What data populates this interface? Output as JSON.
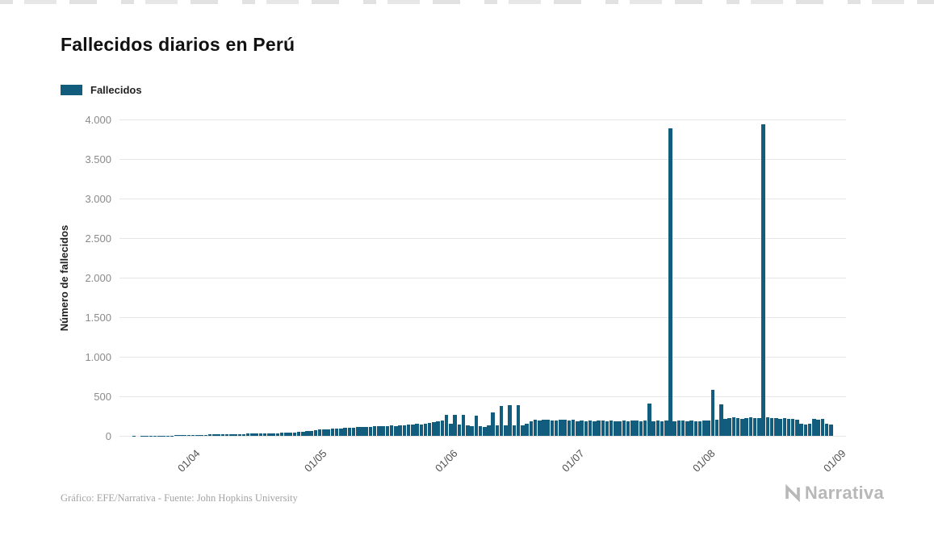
{
  "page": {
    "title": "Fallecidos diarios en Perú",
    "footer_credit": "Gráfico: EFE/Narrativa - Fuente: John Hopkins University",
    "brand": "Narrativa"
  },
  "legend": {
    "label": "Fallecidos",
    "swatch_color": "#125d7e"
  },
  "colors": {
    "bar": "#125d7e",
    "grid": "#e6e6e6",
    "y_tick_text": "#8a8a8a",
    "x_tick_text": "#4f4f4f",
    "title_text": "#111111",
    "credit_text": "#a3a3a3",
    "brand_text": "#b8b8b8"
  },
  "chart_data": {
    "type": "bar",
    "title": "Fallecidos diarios en Perú",
    "series_name": "Fallecidos",
    "xlabel": "",
    "ylabel": "Número de fallecidos",
    "ylim": [
      0,
      4000
    ],
    "grid": "horizontal",
    "legend_position": "top-left",
    "bar_color": "#125d7e",
    "start_date": "2020-03-15",
    "axis_domain_days": 172,
    "y_ticks": [
      {
        "value": 0,
        "label": "0"
      },
      {
        "value": 500,
        "label": "500"
      },
      {
        "value": 1000,
        "label": "1.000"
      },
      {
        "value": 1500,
        "label": "1.500"
      },
      {
        "value": 2000,
        "label": "2.000"
      },
      {
        "value": 2500,
        "label": "2.500"
      },
      {
        "value": 3000,
        "label": "3.000"
      },
      {
        "value": 3500,
        "label": "3.500"
      },
      {
        "value": 4000,
        "label": "4.000"
      }
    ],
    "x_ticks": [
      {
        "label": "01/04",
        "day_index": 17
      },
      {
        "label": "01/05",
        "day_index": 47
      },
      {
        "label": "01/06",
        "day_index": 78
      },
      {
        "label": "01/07",
        "day_index": 108
      },
      {
        "label": "01/08",
        "day_index": 139
      },
      {
        "label": "01/09",
        "day_index": 170
      }
    ],
    "values": [
      0,
      0,
      0,
      1,
      0,
      2,
      1,
      2,
      3,
      2,
      4,
      5,
      4,
      6,
      8,
      9,
      11,
      13,
      12,
      15,
      14,
      17,
      16,
      19,
      18,
      21,
      20,
      23,
      22,
      25,
      27,
      26,
      29,
      31,
      30,
      33,
      35,
      34,
      37,
      40,
      43,
      46,
      50,
      55,
      60,
      66,
      72,
      78,
      84,
      80,
      90,
      95,
      88,
      100,
      105,
      98,
      110,
      108,
      115,
      112,
      120,
      118,
      125,
      122,
      130,
      127,
      135,
      132,
      140,
      145,
      150,
      148,
      158,
      165,
      175,
      185,
      195,
      270,
      150,
      270,
      140,
      265,
      135,
      125,
      260,
      120,
      115,
      130,
      300,
      135,
      380,
      130,
      390,
      128,
      385,
      135,
      150,
      185,
      200,
      195,
      205,
      200,
      198,
      193,
      200,
      204,
      197,
      201,
      188,
      192,
      185,
      190,
      187,
      193,
      190,
      186,
      191,
      188,
      184,
      190,
      187,
      192,
      189,
      185,
      190,
      410,
      188,
      192,
      186,
      190,
      3890,
      187,
      191,
      189,
      185,
      190,
      188,
      186,
      192,
      195,
      580,
      205,
      400,
      215,
      225,
      230,
      222,
      218,
      228,
      232,
      225,
      220,
      3940,
      235,
      228,
      222,
      216,
      225,
      218,
      212,
      206,
      150,
      145,
      155,
      210,
      205,
      215,
      150,
      140
    ]
  }
}
